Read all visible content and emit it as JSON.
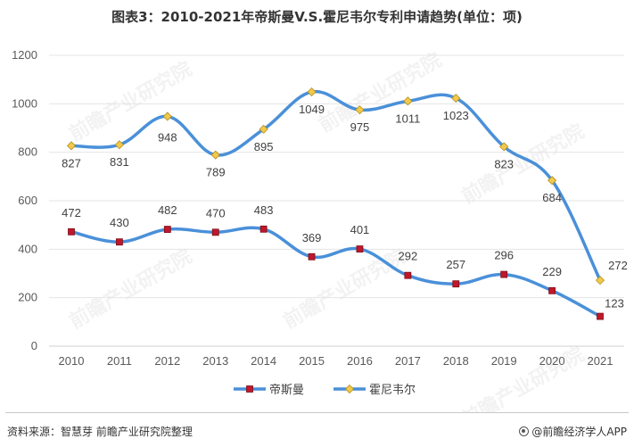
{
  "title": "图表3：2010-2021年帝斯曼V.S.霍尼韦尔专利申请趋势(单位：项)",
  "chart_data": {
    "type": "line",
    "title": "图表3：2010-2021年帝斯曼V.S.霍尼韦尔专利申请趋势(单位：项)",
    "categories": [
      "2010",
      "2011",
      "2012",
      "2013",
      "2014",
      "2015",
      "2016",
      "2017",
      "2018",
      "2019",
      "2020",
      "2021"
    ],
    "ylim": [
      0,
      1200
    ],
    "yticks": [
      0,
      200,
      400,
      600,
      800,
      1000,
      1200
    ],
    "grid": true,
    "legend_position": "bottom",
    "series": [
      {
        "name": "帝斯曼",
        "color": "#4a90d9",
        "marker": "square",
        "marker_color": "#c0182a",
        "values": [
          472,
          430,
          482,
          470,
          483,
          369,
          401,
          292,
          257,
          296,
          229,
          123
        ]
      },
      {
        "name": "霍尼韦尔",
        "color": "#4a90d9",
        "marker": "diamond",
        "marker_color": "#f2c94c",
        "values": [
          827,
          831,
          948,
          789,
          895,
          1049,
          975,
          1011,
          1023,
          823,
          684,
          272
        ]
      }
    ]
  },
  "footer": {
    "source": "资料来源：智慧芽 前瞻产业研究院整理",
    "brand": "@前瞻经济学人APP"
  },
  "watermark": "前瞻产业研究院"
}
